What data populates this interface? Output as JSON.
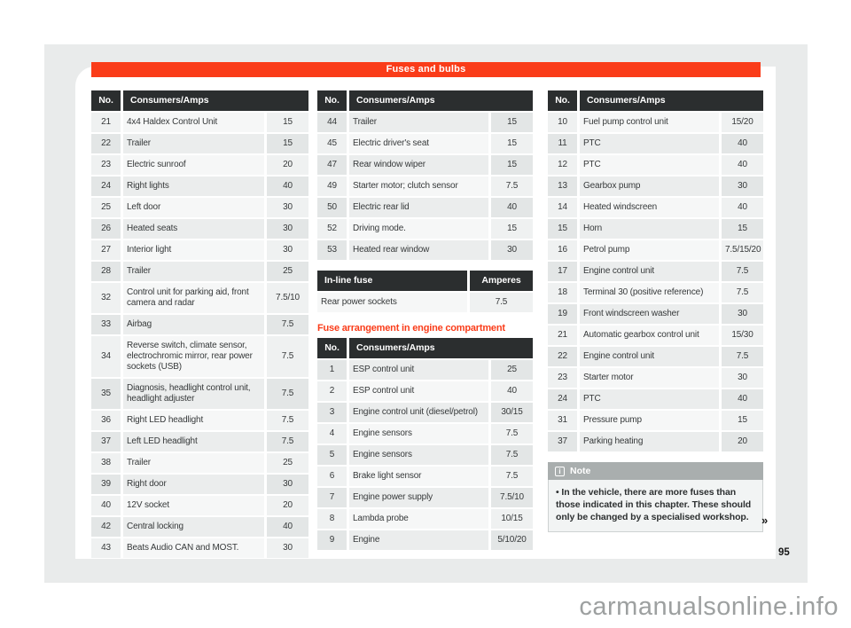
{
  "page": {
    "header_title": "Fuses and bulbs",
    "page_number": "95",
    "continuation_marker": "»",
    "watermark": "carmanualsonline.info"
  },
  "colors": {
    "accent": "#fa3c19",
    "thead": "#2b2e2f",
    "notehead": "#a9aeae",
    "panel": "#e9ebeb"
  },
  "tables": {
    "column_headers": {
      "no": "No.",
      "consumers": "Consumers/Amps"
    },
    "dash_left": [
      {
        "no": "21",
        "name": "4x4 Haldex Control Unit",
        "amps": "15"
      },
      {
        "no": "22",
        "name": "Trailer",
        "amps": "15"
      },
      {
        "no": "23",
        "name": "Electric sunroof",
        "amps": "20"
      },
      {
        "no": "24",
        "name": "Right lights",
        "amps": "40"
      },
      {
        "no": "25",
        "name": "Left door",
        "amps": "30"
      },
      {
        "no": "26",
        "name": "Heated seats",
        "amps": "30"
      },
      {
        "no": "27",
        "name": "Interior light",
        "amps": "30"
      },
      {
        "no": "28",
        "name": "Trailer",
        "amps": "25"
      },
      {
        "no": "32",
        "name": "Control unit for parking aid, front camera and radar",
        "amps": "7.5/10"
      },
      {
        "no": "33",
        "name": "Airbag",
        "amps": "7.5"
      },
      {
        "no": "34",
        "name": "Reverse switch, climate sensor, electrochromic mirror, rear power sockets (USB)",
        "amps": "7.5"
      },
      {
        "no": "35",
        "name": "Diagnosis, headlight control unit, headlight adjuster",
        "amps": "7.5"
      },
      {
        "no": "36",
        "name": "Right LED headlight",
        "amps": "7.5"
      },
      {
        "no": "37",
        "name": "Left LED headlight",
        "amps": "7.5"
      },
      {
        "no": "38",
        "name": "Trailer",
        "amps": "25"
      },
      {
        "no": "39",
        "name": "Right door",
        "amps": "30"
      },
      {
        "no": "40",
        "name": "12V socket",
        "amps": "20"
      },
      {
        "no": "42",
        "name": "Central locking",
        "amps": "40"
      },
      {
        "no": "43",
        "name": "Beats Audio CAN and MOST.",
        "amps": "30"
      }
    ],
    "dash_middle": [
      {
        "no": "44",
        "name": "Trailer",
        "amps": "15"
      },
      {
        "no": "45",
        "name": "Electric driver's seat",
        "amps": "15"
      },
      {
        "no": "47",
        "name": "Rear window wiper",
        "amps": "15"
      },
      {
        "no": "49",
        "name": "Starter motor; clutch sensor",
        "amps": "7.5"
      },
      {
        "no": "50",
        "name": "Electric rear lid",
        "amps": "40"
      },
      {
        "no": "52",
        "name": "Driving mode.",
        "amps": "15"
      },
      {
        "no": "53",
        "name": "Heated rear window",
        "amps": "30"
      }
    ],
    "inline_fuse": {
      "headers": {
        "name": "In-line fuse",
        "amps": "Amperes"
      },
      "rows": [
        {
          "name": "Rear power sockets",
          "amps": "7.5"
        }
      ]
    },
    "engine_heading": "Fuse arrangement in engine compartment",
    "engine": [
      {
        "no": "1",
        "name": "ESP control unit",
        "amps": "25"
      },
      {
        "no": "2",
        "name": "ESP control unit",
        "amps": "40"
      },
      {
        "no": "3",
        "name": "Engine control unit (diesel/petrol)",
        "amps": "30/15"
      },
      {
        "no": "4",
        "name": "Engine sensors",
        "amps": "7.5"
      },
      {
        "no": "5",
        "name": "Engine sensors",
        "amps": "7.5"
      },
      {
        "no": "6",
        "name": "Brake light sensor",
        "amps": "7.5"
      },
      {
        "no": "7",
        "name": "Engine power supply",
        "amps": "7.5/10"
      },
      {
        "no": "8",
        "name": "Lambda probe",
        "amps": "10/15"
      },
      {
        "no": "9",
        "name": "Engine",
        "amps": "5/10/20"
      }
    ],
    "engine_right": [
      {
        "no": "10",
        "name": "Fuel pump control unit",
        "amps": "15/20"
      },
      {
        "no": "11",
        "name": "PTC",
        "amps": "40"
      },
      {
        "no": "12",
        "name": "PTC",
        "amps": "40"
      },
      {
        "no": "13",
        "name": "Gearbox pump",
        "amps": "30"
      },
      {
        "no": "14",
        "name": "Heated windscreen",
        "amps": "40"
      },
      {
        "no": "15",
        "name": "Horn",
        "amps": "15"
      },
      {
        "no": "16",
        "name": "Petrol pump",
        "amps": "7.5/15/20"
      },
      {
        "no": "17",
        "name": "Engine control unit",
        "amps": "7.5"
      },
      {
        "no": "18",
        "name": "Terminal 30 (positive reference)",
        "amps": "7.5"
      },
      {
        "no": "19",
        "name": "Front windscreen washer",
        "amps": "30"
      },
      {
        "no": "21",
        "name": "Automatic gearbox control unit",
        "amps": "15/30"
      },
      {
        "no": "22",
        "name": "Engine control unit",
        "amps": "7.5"
      },
      {
        "no": "23",
        "name": "Starter motor",
        "amps": "30"
      },
      {
        "no": "24",
        "name": "PTC",
        "amps": "40"
      },
      {
        "no": "31",
        "name": "Pressure pump",
        "amps": "15"
      },
      {
        "no": "37",
        "name": "Parking heating",
        "amps": "20"
      }
    ]
  },
  "note": {
    "icon": "i",
    "title": "Note",
    "bullet": "•",
    "text": "In the vehicle, there are more fuses than those indicated in this chapter. These should only be changed by a specialised workshop."
  }
}
